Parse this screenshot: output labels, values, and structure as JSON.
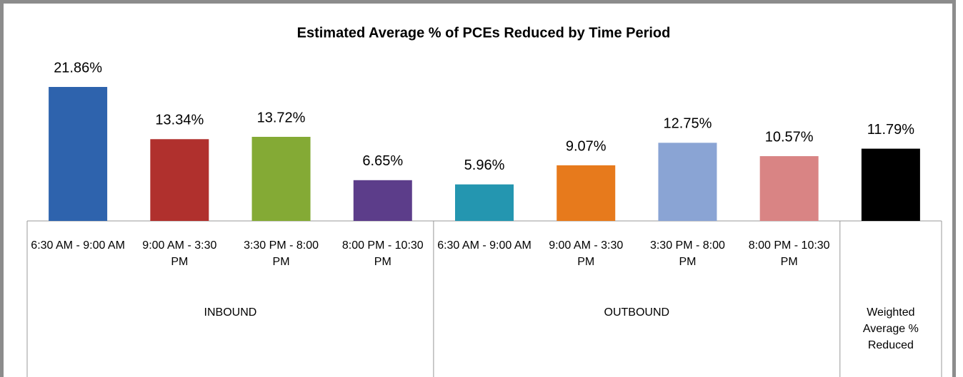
{
  "chart_data": {
    "type": "bar",
    "title": "Estimated Average % of PCEs Reduced by Time Period",
    "categories": [
      "6:30 AM - 9:00 AM",
      "9:00 AM - 3:30 PM",
      "3:30 PM - 8:00 PM",
      "8:00 PM - 10:30 PM",
      "6:30 AM - 9:00 AM",
      "9:00 AM - 3:30 PM",
      "3:30 PM - 8:00 PM",
      "8:00 PM - 10:30 PM",
      null
    ],
    "groups": [
      {
        "name": "INBOUND",
        "size": 4
      },
      {
        "name": "OUTBOUND",
        "size": 4
      },
      {
        "name": "Weighted Average % Reduced",
        "size": 1
      }
    ],
    "values": [
      21.86,
      13.34,
      13.72,
      6.65,
      5.96,
      9.07,
      12.75,
      10.57,
      11.79
    ],
    "value_labels": [
      "21.86%",
      "13.34%",
      "13.72%",
      "6.65%",
      "5.96%",
      "9.07%",
      "12.75%",
      "10.57%",
      "11.79%"
    ],
    "colors": [
      "#2e63ad",
      "#b0302d",
      "#84aa35",
      "#5c3d8a",
      "#2496b0",
      "#e77a1c",
      "#8aa4d4",
      "#d98484",
      "#000000"
    ]
  }
}
